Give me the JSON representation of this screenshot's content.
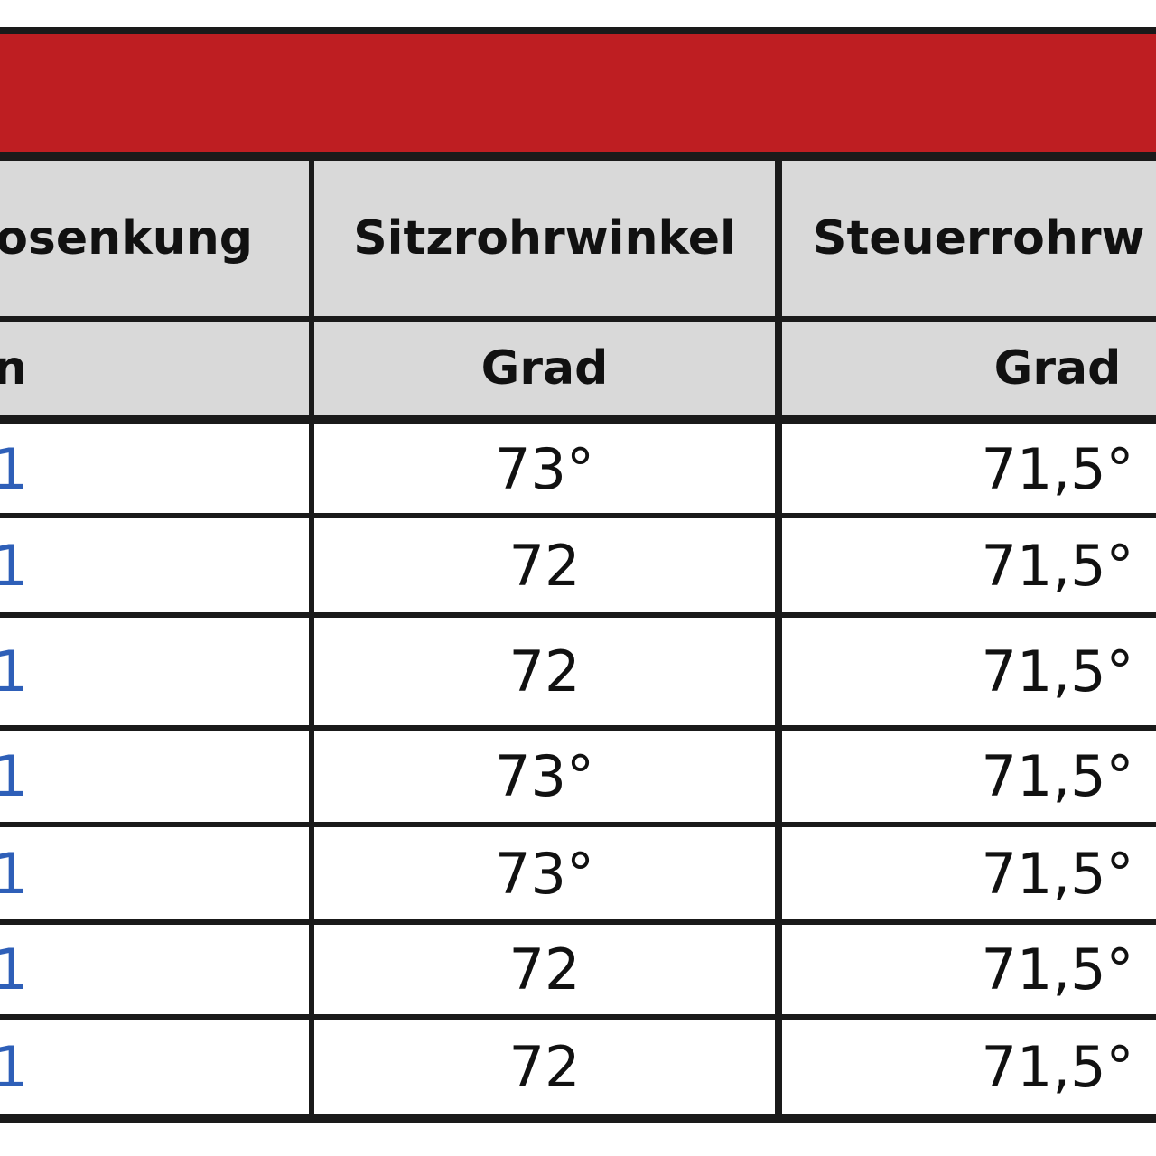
{
  "table": {
    "header_rows": [
      [
        "osenkung",
        "Sitzrohrwinkel",
        "Steuerrohrw"
      ],
      [
        "n",
        "Grad",
        "Grad"
      ]
    ],
    "rows": [
      [
        "1",
        "73°",
        "71,5°"
      ],
      [
        "1",
        "72",
        "71,5°"
      ],
      [
        "1",
        "72",
        "71,5°"
      ],
      [
        "1",
        "73°",
        "71,5°"
      ],
      [
        "1",
        "73°",
        "71,5°"
      ],
      [
        "1",
        "72",
        "71,5°"
      ],
      [
        "1",
        "72",
        "71,5°"
      ]
    ]
  }
}
